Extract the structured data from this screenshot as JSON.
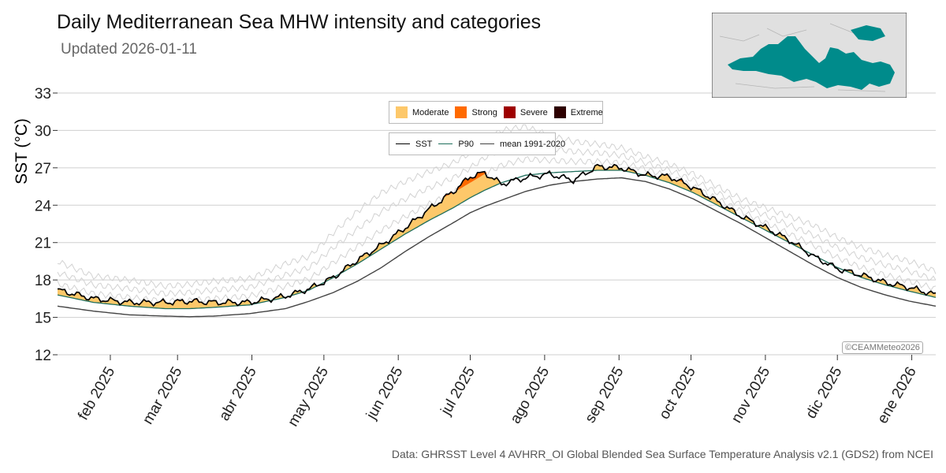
{
  "header": {
    "title": "Daily Mediterranean Sea MHW intensity and categories",
    "subtitle": "Updated 2026-01-11"
  },
  "caption": "Data: GHRSST Level 4 AVHRR_OI Global Blended Sea Surface Temperature Analysis v2.1 (GDS2) from NCEI",
  "credit": "©CEAMMeteo2026",
  "colors": {
    "moderate": "#fdc86a",
    "strong": "#ff6a00",
    "severe": "#9e0000",
    "extreme": "#2d0000",
    "sst": "#000000",
    "p90": "#1f6e5c",
    "mean": "#444444",
    "sea": "#008b8b",
    "land": "#e0e0e0"
  },
  "legend_categories": [
    {
      "label": "Moderate",
      "color": "#fdc86a"
    },
    {
      "label": "Strong",
      "color": "#ff6a00"
    },
    {
      "label": "Severe",
      "color": "#9e0000"
    },
    {
      "label": "Extreme",
      "color": "#2d0000"
    }
  ],
  "legend_lines": [
    {
      "label": "SST",
      "color": "#000000"
    },
    {
      "label": "P90",
      "color": "#1f6e5c"
    },
    {
      "label": "mean 1991-2020",
      "color": "#444444"
    }
  ],
  "chart_data": {
    "type": "line",
    "title": "Daily Mediterranean Sea MHW intensity and categories",
    "ylabel": "SST (°C)",
    "xlabel": "",
    "ylim": [
      12,
      33
    ],
    "yticks": [
      12,
      15,
      18,
      21,
      24,
      27,
      30,
      33
    ],
    "xlim_days": [
      0,
      366
    ],
    "x_ticks": [
      {
        "label": "feb 2025",
        "day": 22
      },
      {
        "label": "mar 2025",
        "day": 50
      },
      {
        "label": "abr 2025",
        "day": 81
      },
      {
        "label": "may 2025",
        "day": 111
      },
      {
        "label": "jun 2025",
        "day": 142
      },
      {
        "label": "jul 2025",
        "day": 172
      },
      {
        "label": "ago 2025",
        "day": 203
      },
      {
        "label": "sep 2025",
        "day": 234
      },
      {
        "label": "oct 2025",
        "day": 264
      },
      {
        "label": "nov 2025",
        "day": 295
      },
      {
        "label": "dic 2025",
        "day": 325
      },
      {
        "label": "ene 2026",
        "day": 356
      }
    ],
    "x_day_index": [
      0,
      15,
      30,
      45,
      55,
      65,
      80,
      95,
      105,
      115,
      125,
      135,
      145,
      155,
      165,
      172,
      178,
      185,
      195,
      205,
      215,
      225,
      235,
      245,
      255,
      265,
      275,
      285,
      295,
      305,
      315,
      325,
      335,
      345,
      355,
      366
    ],
    "series": [
      {
        "name": "SST",
        "values": [
          17.2,
          16.5,
          16.2,
          16.2,
          16.3,
          16.2,
          16.2,
          16.7,
          17.3,
          18.2,
          19.6,
          20.8,
          22.2,
          23.7,
          25.1,
          26.3,
          26.6,
          25.7,
          26.2,
          26.5,
          26.0,
          27.1,
          27.0,
          26.4,
          26.3,
          25.4,
          24.3,
          23.1,
          22.2,
          21.2,
          19.9,
          18.9,
          18.4,
          17.8,
          17.4,
          16.8
        ]
      },
      {
        "name": "P90",
        "values": [
          16.8,
          16.2,
          15.9,
          15.7,
          15.7,
          15.8,
          16.0,
          16.6,
          17.2,
          18.2,
          19.3,
          20.5,
          21.7,
          22.8,
          23.8,
          24.6,
          25.2,
          25.8,
          26.4,
          26.6,
          26.7,
          26.8,
          26.8,
          26.4,
          25.8,
          25.0,
          24.0,
          23.0,
          22.0,
          21.0,
          20.0,
          19.0,
          18.2,
          17.6,
          17.1,
          16.6
        ]
      },
      {
        "name": "mean 1991-2020",
        "values": [
          15.9,
          15.5,
          15.2,
          15.1,
          15.05,
          15.1,
          15.3,
          15.7,
          16.3,
          17.0,
          17.9,
          19.0,
          20.3,
          21.5,
          22.6,
          23.4,
          23.9,
          24.4,
          25.1,
          25.6,
          25.9,
          26.1,
          26.2,
          25.9,
          25.3,
          24.5,
          23.5,
          22.5,
          21.4,
          20.3,
          19.2,
          18.2,
          17.4,
          16.8,
          16.3,
          15.9
        ]
      }
    ]
  }
}
